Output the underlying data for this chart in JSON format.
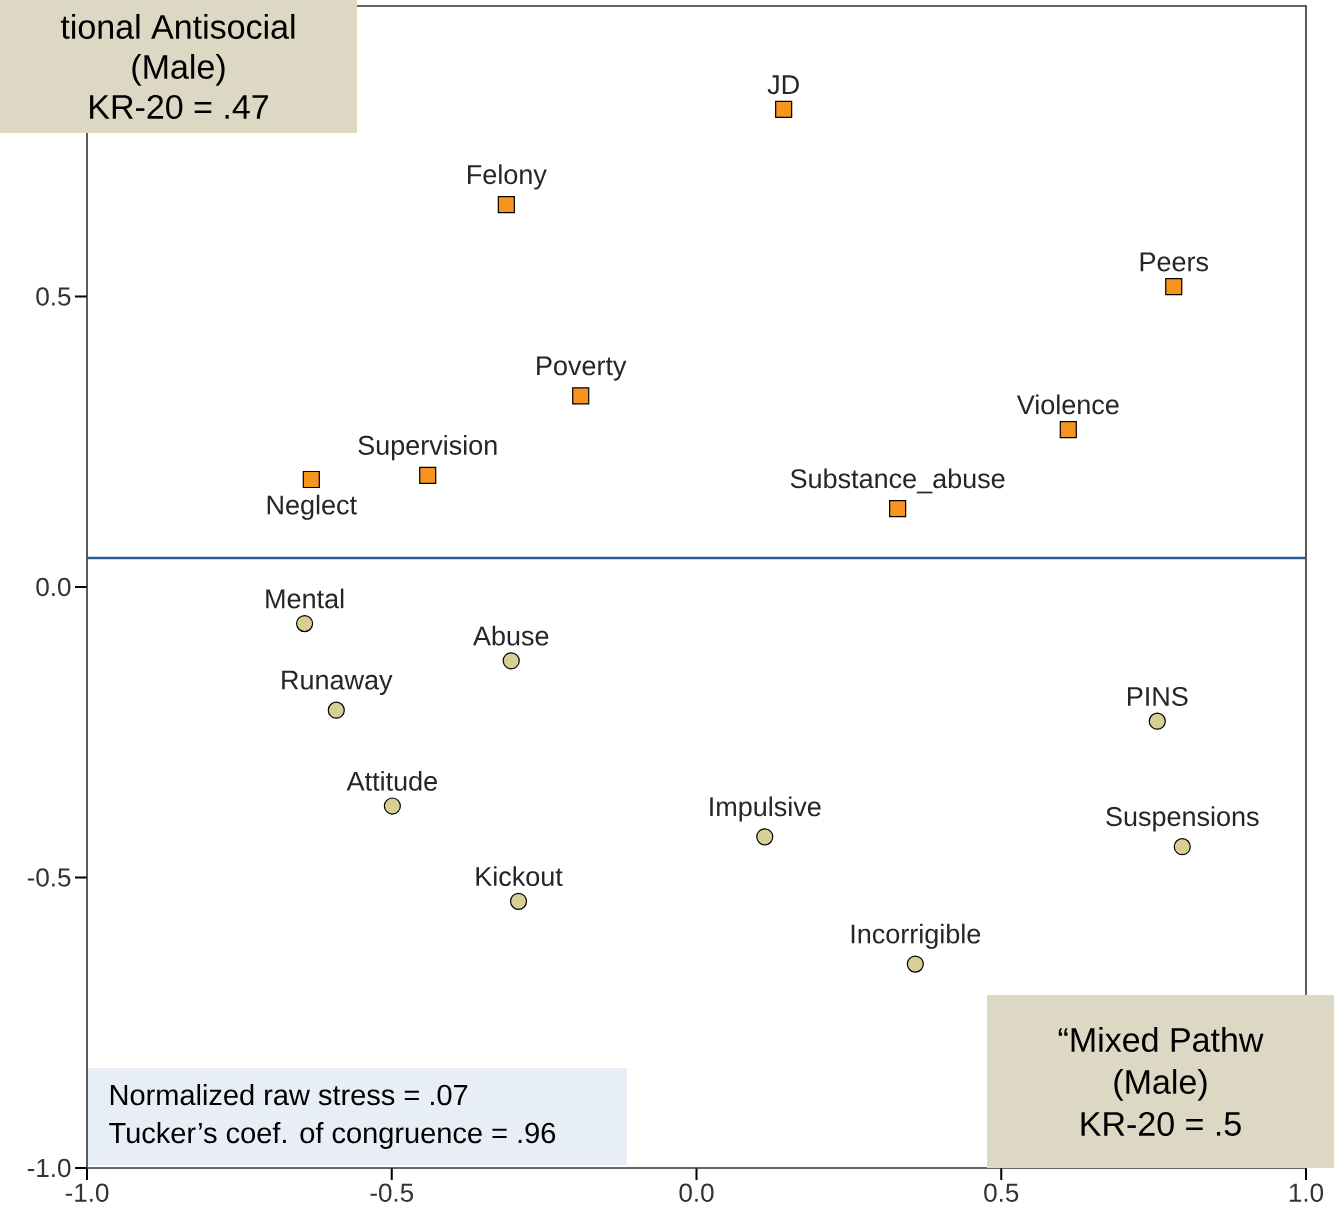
{
  "chart_data": {
    "type": "scatter",
    "series": [
      {
        "color": "#f7941d",
        "marker": "square",
        "x": [
          0.143,
          -0.312,
          0.783,
          -0.19,
          0.61,
          -0.441,
          -0.632,
          0.33
        ],
        "values": [
          0.822,
          0.658,
          0.517,
          0.329,
          0.271,
          0.192,
          0.185,
          0.135
        ]
      },
      {
        "color": "#d8cf94",
        "marker": "circle",
        "x": [
          -0.643,
          -0.304,
          -0.591,
          0.756,
          -0.499,
          0.112,
          0.797,
          -0.292,
          0.359
        ],
        "values": [
          -0.063,
          -0.127,
          -0.212,
          -0.231,
          -0.377,
          -0.43,
          -0.447,
          -0.541,
          -0.649
        ]
      }
    ],
    "xlim": [
      -1,
      1
    ],
    "ylim": [
      -1,
      1
    ],
    "xticks": [
      {
        "value": -1,
        "label": "-1.0"
      },
      -0.5,
      {
        "value": 0,
        "label": "0.0"
      },
      0.5,
      {
        "value": 1,
        "label": "1.0"
      }
    ],
    "yticks": [
      {
        "value": -1,
        "label": "-1.0"
      },
      -0.5,
      {
        "value": 0,
        "label": "0.0"
      },
      0.5
    ],
    "ref_lines": [
      {
        "axis": "y",
        "value": 0.05,
        "color": "#2e5c99"
      }
    ],
    "grid": false,
    "annotations": [
      "tional Antisocial",
      "(Male)",
      "KR-20 = .47",
      "“Mixed Pathw",
      "(Male)",
      "KR-20 = .5",
      "Normalized raw stress = .07",
      "Tucker’s coef. of congruence = .96",
      {
        "text": "JD",
        "x": 0.143,
        "y": 0.822
      },
      {
        "text": "Felony",
        "x": -0.312,
        "y": 0.658
      },
      {
        "text": "Peers",
        "x": 0.783,
        "y": 0.517
      },
      {
        "text": "Poverty",
        "x": -0.19,
        "y": 0.329
      },
      {
        "text": "Violence",
        "x": 0.61,
        "y": 0.271
      },
      {
        "text": "Supervision",
        "x": -0.441,
        "y": 0.192
      },
      {
        "text": "Neglect",
        "x": -0.632,
        "y": 0.185
      },
      {
        "text": "Substance_abuse",
        "x": 0.33,
        "y": 0.135
      },
      {
        "text": "Mental",
        "x": -0.643,
        "y": -0.063
      },
      {
        "text": "Abuse",
        "x": -0.304,
        "y": -0.127
      },
      {
        "text": "Runaway",
        "x": -0.591,
        "y": -0.212
      },
      {
        "text": "PINS",
        "x": 0.756,
        "y": -0.231
      },
      {
        "text": "Attitude",
        "x": -0.499,
        "y": -0.377
      },
      {
        "text": "Impulsive",
        "x": 0.112,
        "y": -0.43
      },
      {
        "text": "Suspensions",
        "x": 0.797,
        "y": -0.447
      },
      {
        "text": "Kickout",
        "x": -0.292,
        "y": -0.541
      },
      {
        "text": "Incorrigible",
        "x": 0.359,
        "y": -0.649
      }
    ]
  }
}
